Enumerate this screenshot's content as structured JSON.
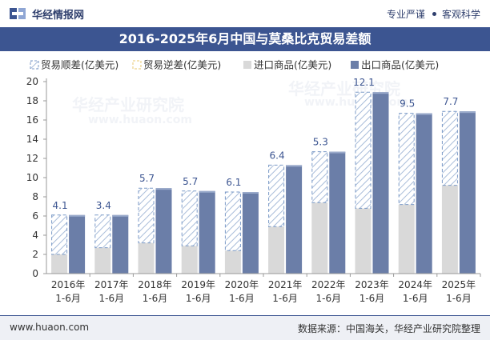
{
  "header": {
    "brand": "华经情报网",
    "slogan_left": "专业严谨",
    "slogan_right": "客观科学"
  },
  "footer": {
    "website": "www.huaon.com",
    "source": "数据来源：中国海关，华经产业研究院整理"
  },
  "watermark": {
    "cn": "华经产业研究院",
    "url": "www.huaon.com"
  },
  "colors": {
    "title_bar": "#3c5591",
    "export": "#6b7ea8",
    "import": "#d9d9d9",
    "surplus_stroke": "#7b9ac7",
    "deficit_stroke": "#e8c870"
  },
  "chart_data": {
    "type": "bar",
    "title": "2016-2025年6月中国与莫桑比克贸易差额",
    "categories": [
      "2016年\n1-6月",
      "2017年\n1-6月",
      "2018年\n1-6月",
      "2019年\n1-6月",
      "2020年\n1-6月",
      "2021年\n1-6月",
      "2022年\n1-6月",
      "2023年\n1-6月",
      "2024年\n1-6月",
      "2025年\n1-6月"
    ],
    "series": [
      {
        "name": "贸易顺差(亿美元)",
        "values": [
          4.1,
          3.4,
          5.7,
          5.7,
          6.1,
          6.4,
          5.3,
          12.1,
          9.5,
          7.7
        ]
      },
      {
        "name": "贸易逆差(亿美元)",
        "values": [
          0,
          0,
          0,
          0,
          0,
          0,
          0,
          0,
          0,
          0
        ]
      },
      {
        "name": "进口商品(亿美元)",
        "values": [
          2.0,
          2.7,
          3.2,
          2.9,
          2.4,
          4.9,
          7.4,
          6.8,
          7.2,
          9.2
        ]
      },
      {
        "name": "出口商品(亿美元)",
        "values": [
          6.1,
          6.1,
          8.9,
          8.6,
          8.5,
          11.3,
          12.7,
          18.9,
          16.7,
          16.9
        ]
      }
    ],
    "data_labels": [
      "4.1",
      "3.4",
      "5.7",
      "5.7",
      "6.1",
      "6.4",
      "5.3",
      "12.1",
      "9.5",
      "7.7"
    ],
    "ylim": [
      0,
      20
    ],
    "yticks": [
      0,
      2,
      4,
      6,
      8,
      10,
      12,
      14,
      16,
      18,
      20
    ],
    "xlabel": "",
    "ylabel": "",
    "legend_position": "top",
    "grid": false
  }
}
